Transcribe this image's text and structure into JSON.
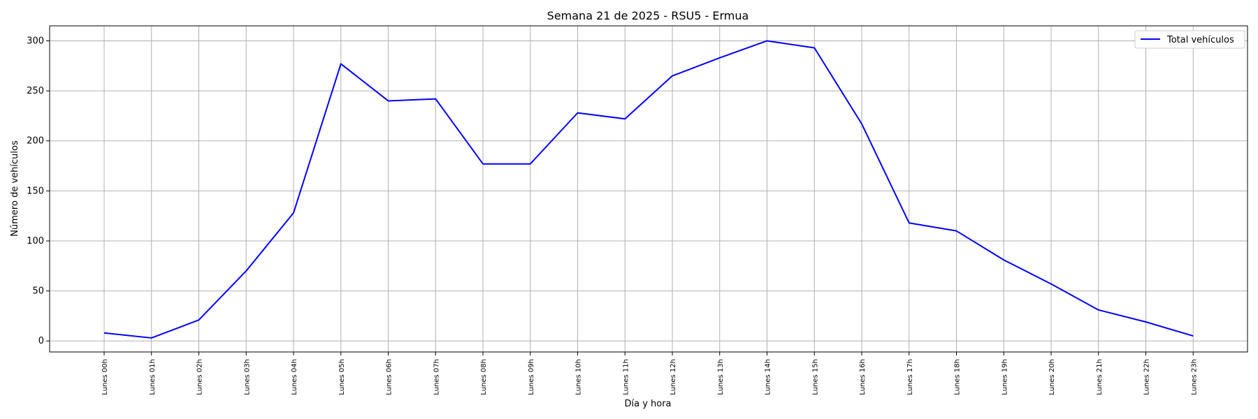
{
  "chart_data": {
    "type": "line",
    "title": "Semana 21 de 2025 - RSU5 - Ermua",
    "xlabel": "Día y hora",
    "ylabel": "Número de vehículos",
    "categories": [
      "Lunes 00h",
      "Lunes 01h",
      "Lunes 02h",
      "Lunes 03h",
      "Lunes 04h",
      "Lunes 05h",
      "Lunes 06h",
      "Lunes 07h",
      "Lunes 08h",
      "Lunes 09h",
      "Lunes 10h",
      "Lunes 11h",
      "Lunes 12h",
      "Lunes 13h",
      "Lunes 14h",
      "Lunes 15h",
      "Lunes 16h",
      "Lunes 17h",
      "Lunes 18h",
      "Lunes 19h",
      "Lunes 20h",
      "Lunes 21h",
      "Lunes 22h",
      "Lunes 23h"
    ],
    "series": [
      {
        "name": "Total vehículos",
        "color": "#0000ff",
        "values": [
          8,
          3,
          21,
          70,
          128,
          277,
          240,
          242,
          177,
          177,
          228,
          222,
          265,
          283,
          300,
          293,
          217,
          118,
          110,
          81,
          57,
          31,
          19,
          5
        ]
      }
    ],
    "ylim": [
      -11,
      315
    ],
    "yticks": [
      0,
      50,
      100,
      150,
      200,
      250,
      300
    ],
    "grid": true,
    "legend_position": "top-right"
  }
}
